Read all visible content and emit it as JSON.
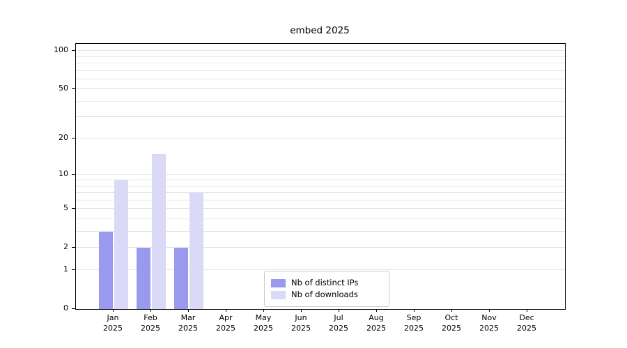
{
  "figure": {
    "background": "#ffffff"
  },
  "chart_data": {
    "type": "bar",
    "title": "embed 2025",
    "xlabel": "",
    "ylabel": "",
    "yscale": "log1p",
    "ylim": [
      0,
      115
    ],
    "yticks": [
      0,
      1,
      2,
      5,
      10,
      20,
      50,
      100
    ],
    "grid": "horizontal, light gray, minor log lines",
    "legend_position": "bottom-center-inside",
    "categories": [
      {
        "month": "Jan",
        "year": "2025"
      },
      {
        "month": "Feb",
        "year": "2025"
      },
      {
        "month": "Mar",
        "year": "2025"
      },
      {
        "month": "Apr",
        "year": "2025"
      },
      {
        "month": "May",
        "year": "2025"
      },
      {
        "month": "Jun",
        "year": "2025"
      },
      {
        "month": "Jul",
        "year": "2025"
      },
      {
        "month": "Aug",
        "year": "2025"
      },
      {
        "month": "Sep",
        "year": "2025"
      },
      {
        "month": "Oct",
        "year": "2025"
      },
      {
        "month": "Nov",
        "year": "2025"
      },
      {
        "month": "Dec",
        "year": "2025"
      }
    ],
    "series": [
      {
        "name": "Nb of distinct IPs",
        "color": "#9999ee",
        "values": [
          3,
          2,
          2,
          0,
          0,
          0,
          0,
          0,
          0,
          0,
          0,
          0
        ]
      },
      {
        "name": "Nb of downloads",
        "color": "#dadaf8",
        "values": [
          9,
          15,
          7,
          0,
          0,
          0,
          0,
          0,
          0,
          0,
          0,
          0
        ]
      }
    ]
  }
}
